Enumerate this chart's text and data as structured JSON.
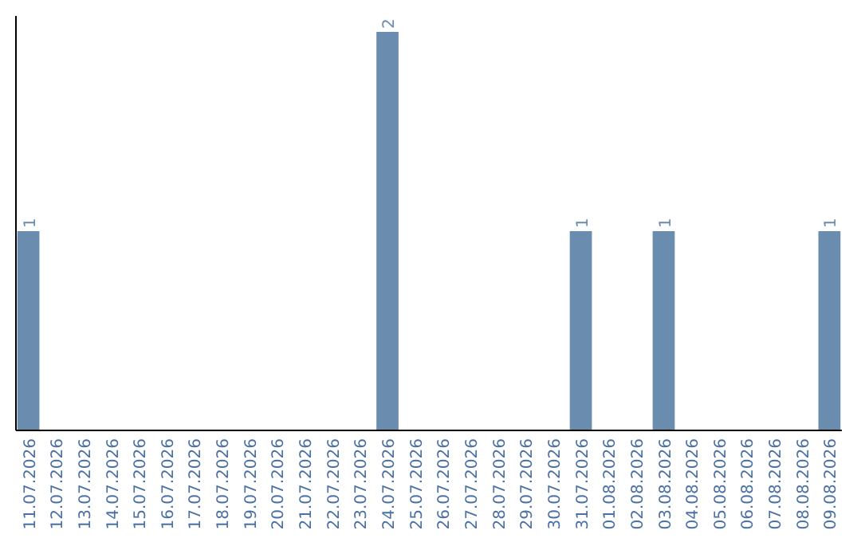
{
  "chart_data": {
    "type": "bar",
    "categories": [
      "11.07.2026",
      "12.07.2026",
      "13.07.2026",
      "14.07.2026",
      "15.07.2026",
      "16.07.2026",
      "17.07.2026",
      "18.07.2026",
      "19.07.2026",
      "20.07.2026",
      "21.07.2026",
      "22.07.2026",
      "23.07.2026",
      "24.07.2026",
      "25.07.2026",
      "26.07.2026",
      "27.07.2026",
      "28.07.2026",
      "29.07.2026",
      "30.07.2026",
      "31.07.2026",
      "01.08.2026",
      "02.08.2026",
      "03.08.2026",
      "04.08.2026",
      "05.08.2026",
      "06.08.2026",
      "07.08.2026",
      "08.08.2026",
      "09.08.2026"
    ],
    "values": [
      1,
      0,
      0,
      0,
      0,
      0,
      0,
      0,
      0,
      0,
      0,
      0,
      0,
      2,
      0,
      0,
      0,
      0,
      0,
      0,
      1,
      0,
      0,
      1,
      0,
      0,
      0,
      0,
      0,
      1
    ],
    "value_labels": [
      "1",
      null,
      null,
      null,
      null,
      null,
      null,
      null,
      null,
      null,
      null,
      null,
      null,
      "2",
      null,
      null,
      null,
      null,
      null,
      null,
      "1",
      null,
      null,
      "1",
      null,
      null,
      null,
      null,
      null,
      "1"
    ],
    "color": "#6a8caf"
  }
}
